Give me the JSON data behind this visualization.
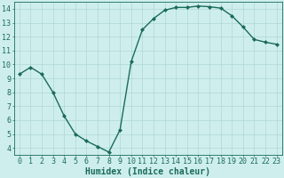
{
  "x": [
    0,
    1,
    2,
    3,
    4,
    5,
    6,
    7,
    8,
    9,
    10,
    11,
    12,
    13,
    14,
    15,
    16,
    17,
    18,
    19,
    20,
    21,
    22,
    23
  ],
  "y": [
    9.3,
    9.8,
    9.3,
    8.0,
    6.3,
    5.0,
    4.5,
    4.1,
    3.7,
    5.3,
    10.2,
    12.5,
    13.3,
    13.9,
    14.1,
    14.1,
    14.2,
    14.15,
    14.05,
    13.5,
    12.7,
    11.8,
    11.6,
    11.45
  ],
  "line_color": "#1a6b5a",
  "marker": "D",
  "marker_size": 2.0,
  "bg_color": "#ceeeed",
  "grid_color": "#aed8d5",
  "xlabel": "Humidex (Indice chaleur)",
  "xlabel_fontsize": 7,
  "tick_fontsize": 6,
  "tick_color": "#1a6b5a",
  "xlim": [
    -0.5,
    23.5
  ],
  "ylim": [
    3.5,
    14.5
  ],
  "yticks": [
    4,
    5,
    6,
    7,
    8,
    9,
    10,
    11,
    12,
    13,
    14
  ],
  "xticks": [
    0,
    1,
    2,
    3,
    4,
    5,
    6,
    7,
    8,
    9,
    10,
    11,
    12,
    13,
    14,
    15,
    16,
    17,
    18,
    19,
    20,
    21,
    22,
    23
  ]
}
